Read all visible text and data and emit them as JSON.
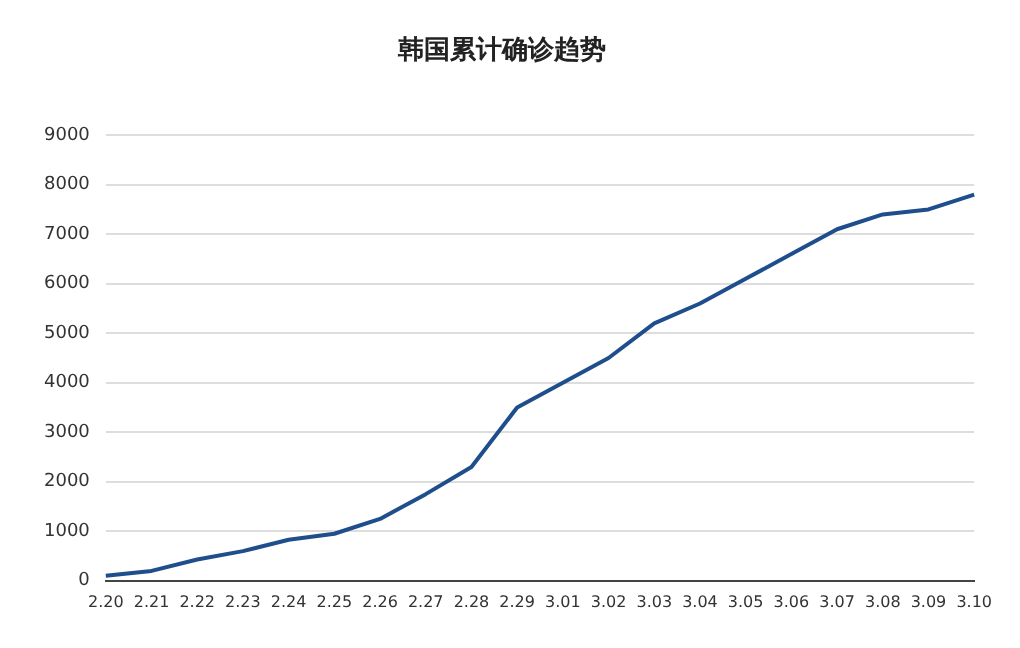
{
  "chart_data": {
    "type": "line",
    "title": "韩国累计确诊趋势",
    "categories": [
      "2.20",
      "2.21",
      "2.22",
      "2.23",
      "2.24",
      "2.25",
      "2.26",
      "2.27",
      "2.28",
      "2.29",
      "3.01",
      "3.02",
      "3.03",
      "3.04",
      "3.05",
      "3.06",
      "3.07",
      "3.08",
      "3.09",
      "3.10"
    ],
    "series": [
      {
        "color": "#1f4e8c",
        "values": [
          100,
          200,
          430,
          600,
          830,
          950,
          1250,
          1750,
          2300,
          3500,
          4000,
          4500,
          5200,
          5600,
          6100,
          6600,
          7100,
          7400,
          7500,
          7800
        ]
      }
    ],
    "ylim": [
      0,
      9000
    ],
    "yticks": [
      0,
      1000,
      2000,
      3000,
      4000,
      5000,
      6000,
      7000,
      8000,
      9000
    ],
    "grid": "y",
    "marker": "none",
    "line_style": "solid",
    "legend": false
  }
}
